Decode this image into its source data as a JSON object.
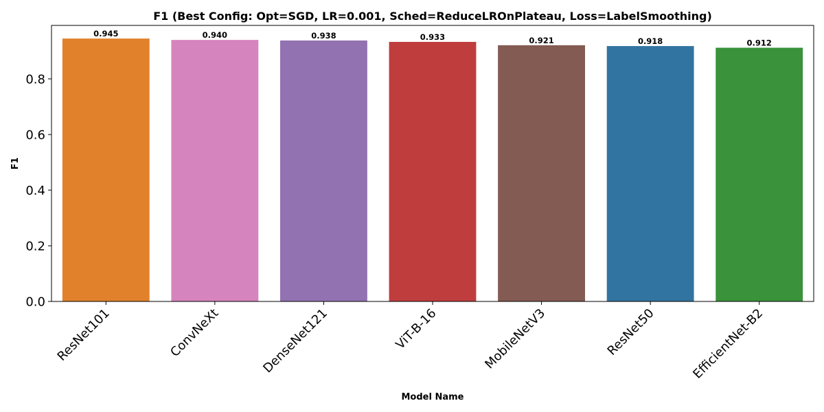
{
  "chart_data": {
    "type": "bar",
    "title": "F1 (Best Config: Opt=SGD, LR=0.001, Sched=ReduceLROnPlateau, Loss=LabelSmoothing)",
    "xlabel": "Model Name",
    "ylabel": "F1",
    "categories": [
      "ResNet101",
      "ConvNeXt",
      "DenseNet121",
      "ViT-B-16",
      "MobileNetV3",
      "ResNet50",
      "EfficientNet-B2"
    ],
    "values": [
      0.945,
      0.94,
      0.938,
      0.933,
      0.921,
      0.918,
      0.912
    ],
    "value_labels": [
      "0.945",
      "0.940",
      "0.938",
      "0.933",
      "0.921",
      "0.918",
      "0.912"
    ],
    "colors": [
      "#e1812c",
      "#d684bd",
      "#9372b2",
      "#c03d3e",
      "#845b53",
      "#3274a1",
      "#3a923a"
    ],
    "yticks": [
      0.0,
      0.2,
      0.4,
      0.6,
      0.8
    ],
    "ytick_labels": [
      "0.0",
      "0.2",
      "0.4",
      "0.6",
      "0.8"
    ],
    "ylim": [
      0,
      0.99225
    ],
    "grid": false,
    "legend": "none"
  }
}
